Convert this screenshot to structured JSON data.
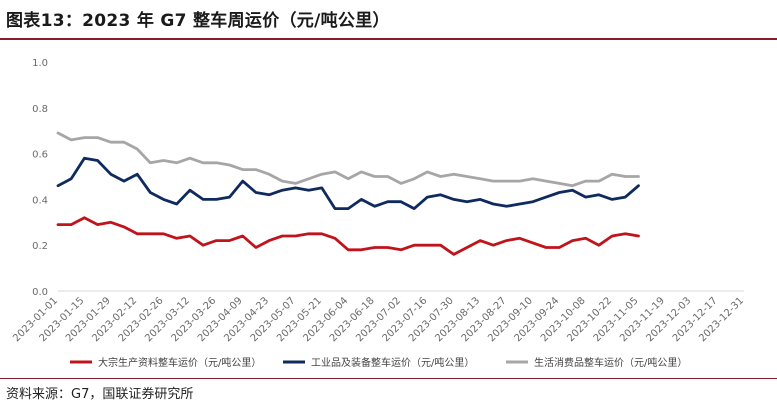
{
  "title": "图表13：2023 年 G7 整车周运价（元/吨公里）",
  "source": "资料来源：G7，国联证券研究所",
  "chart_data": {
    "type": "line",
    "title": "",
    "xlabel": "",
    "ylabel": "",
    "ylim": [
      0,
      1.0
    ],
    "yticks": [
      "0.0",
      "0.2",
      "0.4",
      "0.6",
      "0.8",
      "1.0"
    ],
    "x_range": [
      "2023-01-01",
      "2023-12-31"
    ],
    "xticks": [
      "2023-01-01",
      "2023-01-15",
      "2023-01-29",
      "2023-02-12",
      "2023-02-26",
      "2023-03-12",
      "2023-03-26",
      "2023-04-09",
      "2023-04-23",
      "2023-05-07",
      "2023-05-21",
      "2023-06-04",
      "2023-06-18",
      "2023-07-02",
      "2023-07-16",
      "2023-07-30",
      "2023-08-13",
      "2023-08-27",
      "2023-09-10",
      "2023-09-24",
      "2023-10-08",
      "2023-10-22",
      "2023-11-05",
      "2023-11-19",
      "2023-12-03",
      "2023-12-17",
      "2023-12-31"
    ],
    "grid": false,
    "legend_position": "bottom",
    "series": [
      {
        "name": "大宗生产资料整车运价（元/吨公里）",
        "color": "#c0141c",
        "values": [
          0.29,
          0.29,
          0.32,
          0.29,
          0.3,
          0.28,
          0.25,
          0.25,
          0.25,
          0.23,
          0.24,
          0.2,
          0.22,
          0.22,
          0.24,
          0.19,
          0.22,
          0.24,
          0.24,
          0.25,
          0.25,
          0.23,
          0.18,
          0.18,
          0.19,
          0.19,
          0.18,
          0.2,
          0.2,
          0.2,
          0.16,
          0.19,
          0.22,
          0.2,
          0.22,
          0.23,
          0.21,
          0.19,
          0.19,
          0.22,
          0.23,
          0.2,
          0.24,
          0.25,
          0.24
        ]
      },
      {
        "name": "工业品及装备整车运价（元/吨公里）",
        "color": "#0f2a5e",
        "values": [
          0.46,
          0.49,
          0.58,
          0.57,
          0.51,
          0.48,
          0.51,
          0.43,
          0.4,
          0.38,
          0.44,
          0.4,
          0.4,
          0.41,
          0.48,
          0.43,
          0.42,
          0.44,
          0.45,
          0.44,
          0.45,
          0.36,
          0.36,
          0.4,
          0.37,
          0.39,
          0.39,
          0.36,
          0.41,
          0.42,
          0.4,
          0.39,
          0.4,
          0.38,
          0.37,
          0.38,
          0.39,
          0.41,
          0.43,
          0.44,
          0.41,
          0.42,
          0.4,
          0.41,
          0.46
        ]
      },
      {
        "name": "生活消费品整车运价（元/吨公里）",
        "color": "#a6a6a6",
        "values": [
          0.69,
          0.66,
          0.67,
          0.67,
          0.65,
          0.65,
          0.62,
          0.56,
          0.57,
          0.56,
          0.58,
          0.56,
          0.56,
          0.55,
          0.53,
          0.53,
          0.51,
          0.48,
          0.47,
          0.49,
          0.51,
          0.52,
          0.49,
          0.52,
          0.5,
          0.5,
          0.47,
          0.49,
          0.52,
          0.5,
          0.51,
          0.5,
          0.49,
          0.48,
          0.48,
          0.48,
          0.49,
          0.48,
          0.47,
          0.46,
          0.48,
          0.48,
          0.51,
          0.5,
          0.5
        ]
      }
    ]
  }
}
